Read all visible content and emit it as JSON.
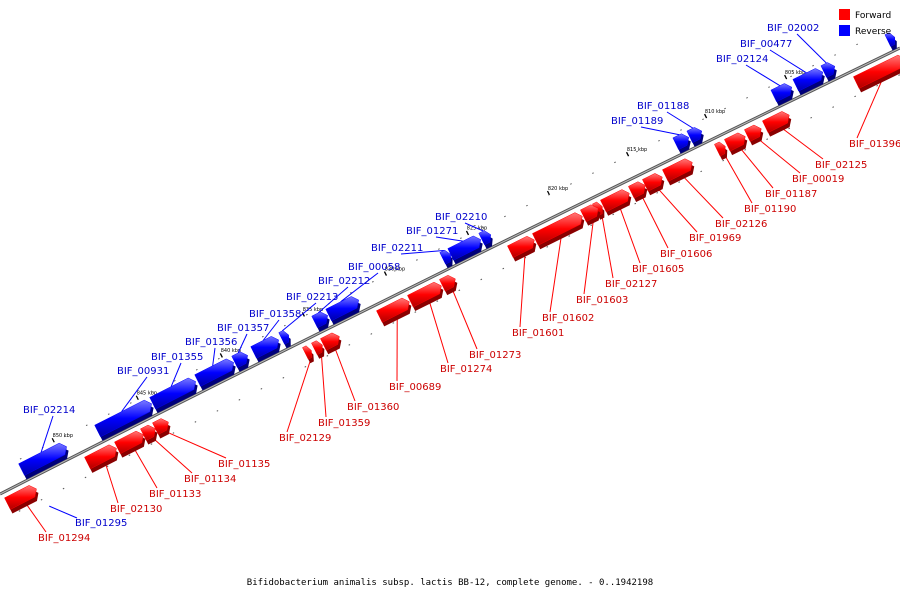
{
  "footer": "Bifidobacterium animalis subsp. lactis BB-12, complete genome. - 0..1942198",
  "legend": [
    {
      "label": "Forward",
      "color": "#ff0000"
    },
    {
      "label": "Reverse",
      "color": "#0000ff"
    }
  ],
  "colors": {
    "forward": "#ff0000",
    "reverse": "#0000ff",
    "backbone": "#888888"
  },
  "ticks": [
    "805 kbp",
    "810 kbp",
    "815 kbp",
    "820 kbp",
    "825 kbp",
    "830 kbp",
    "835 kbp",
    "840 kbp",
    "845 kbp",
    "850 kbp"
  ],
  "genes": {
    "forward": [
      "BIF_01396",
      "BIF_02125",
      "BIF_00019",
      "BIF_01187",
      "BIF_01190",
      "BIF_02126",
      "BIF_01969",
      "BIF_01606",
      "BIF_01605",
      "BIF_02127",
      "BIF_01603",
      "BIF_01602",
      "BIF_01601",
      "BIF_01273",
      "BIF_01274",
      "BIF_00689",
      "BIF_01360",
      "BIF_01359",
      "BIF_02129",
      "BIF_01135",
      "BIF_01134",
      "BIF_01133",
      "BIF_02130",
      "BIF_01294"
    ],
    "reverse": [
      "BIF_02002",
      "BIF_00477",
      "BIF_02124",
      "BIF_01188",
      "BIF_01189",
      "BIF_02210",
      "BIF_01271",
      "BIF_02211",
      "BIF_00058",
      "BIF_02212",
      "BIF_02213",
      "BIF_01358",
      "BIF_01357",
      "BIF_01356",
      "BIF_01355",
      "BIF_00931",
      "BIF_02214",
      "BIF_01295"
    ]
  }
}
